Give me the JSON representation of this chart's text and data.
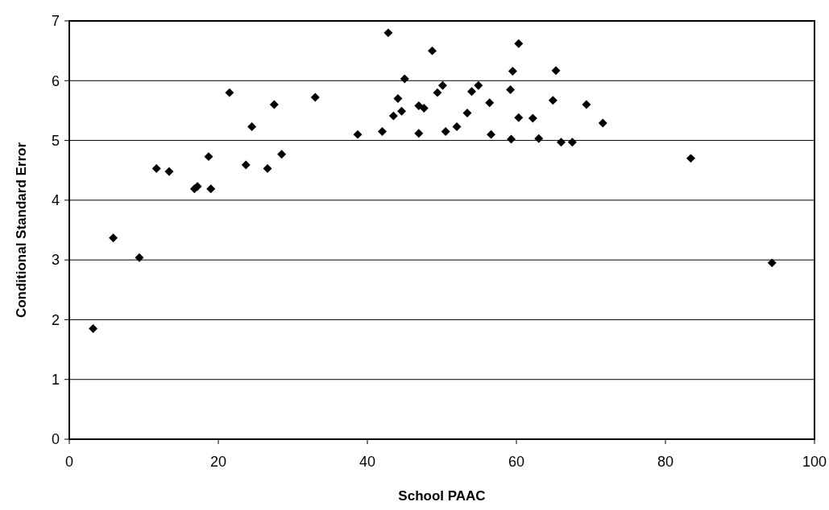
{
  "chart_data": {
    "type": "scatter",
    "xlabel": "School PAAC",
    "ylabel": "Conditional Standard Error",
    "x": [
      3.2,
      5.9,
      9.4,
      11.7,
      13.4,
      16.8,
      17.2,
      19.0,
      18.7,
      21.5,
      23.7,
      24.5,
      26.6,
      27.5,
      28.5,
      33.0,
      38.7,
      42.0,
      42.8,
      43.5,
      44.1,
      44.6,
      45.0,
      46.9,
      46.9,
      47.6,
      48.7,
      49.4,
      50.1,
      50.5,
      52.0,
      53.4,
      54.0,
      54.9,
      56.4,
      56.6,
      59.2,
      59.3,
      59.5,
      60.3,
      60.3,
      62.2,
      63.0,
      64.9,
      65.3,
      66.0,
      67.5,
      69.4,
      71.6,
      83.4,
      94.3
    ],
    "series": [
      {
        "color": "#000000",
        "values": [
          1.85,
          3.37,
          3.04,
          4.53,
          4.48,
          4.19,
          4.23,
          4.19,
          4.73,
          5.8,
          4.59,
          5.23,
          4.53,
          5.6,
          4.77,
          5.72,
          5.1,
          5.15,
          6.8,
          5.41,
          5.7,
          5.49,
          6.03,
          5.12,
          5.58,
          5.54,
          6.5,
          5.8,
          5.92,
          5.15,
          5.23,
          5.46,
          5.82,
          5.92,
          5.63,
          5.1,
          5.85,
          5.02,
          6.16,
          5.38,
          6.62,
          5.37,
          5.03,
          5.67,
          6.17,
          4.97,
          4.97,
          5.6,
          5.29,
          4.7,
          2.95
        ]
      }
    ],
    "xlim": [
      0,
      100
    ],
    "xticks": [
      0,
      20,
      40,
      60,
      80,
      100
    ],
    "ylim": [
      0,
      7
    ],
    "yticks": [
      0,
      1,
      2,
      3,
      4,
      5,
      6,
      7
    ],
    "grid": "y",
    "marker": "diamond"
  }
}
